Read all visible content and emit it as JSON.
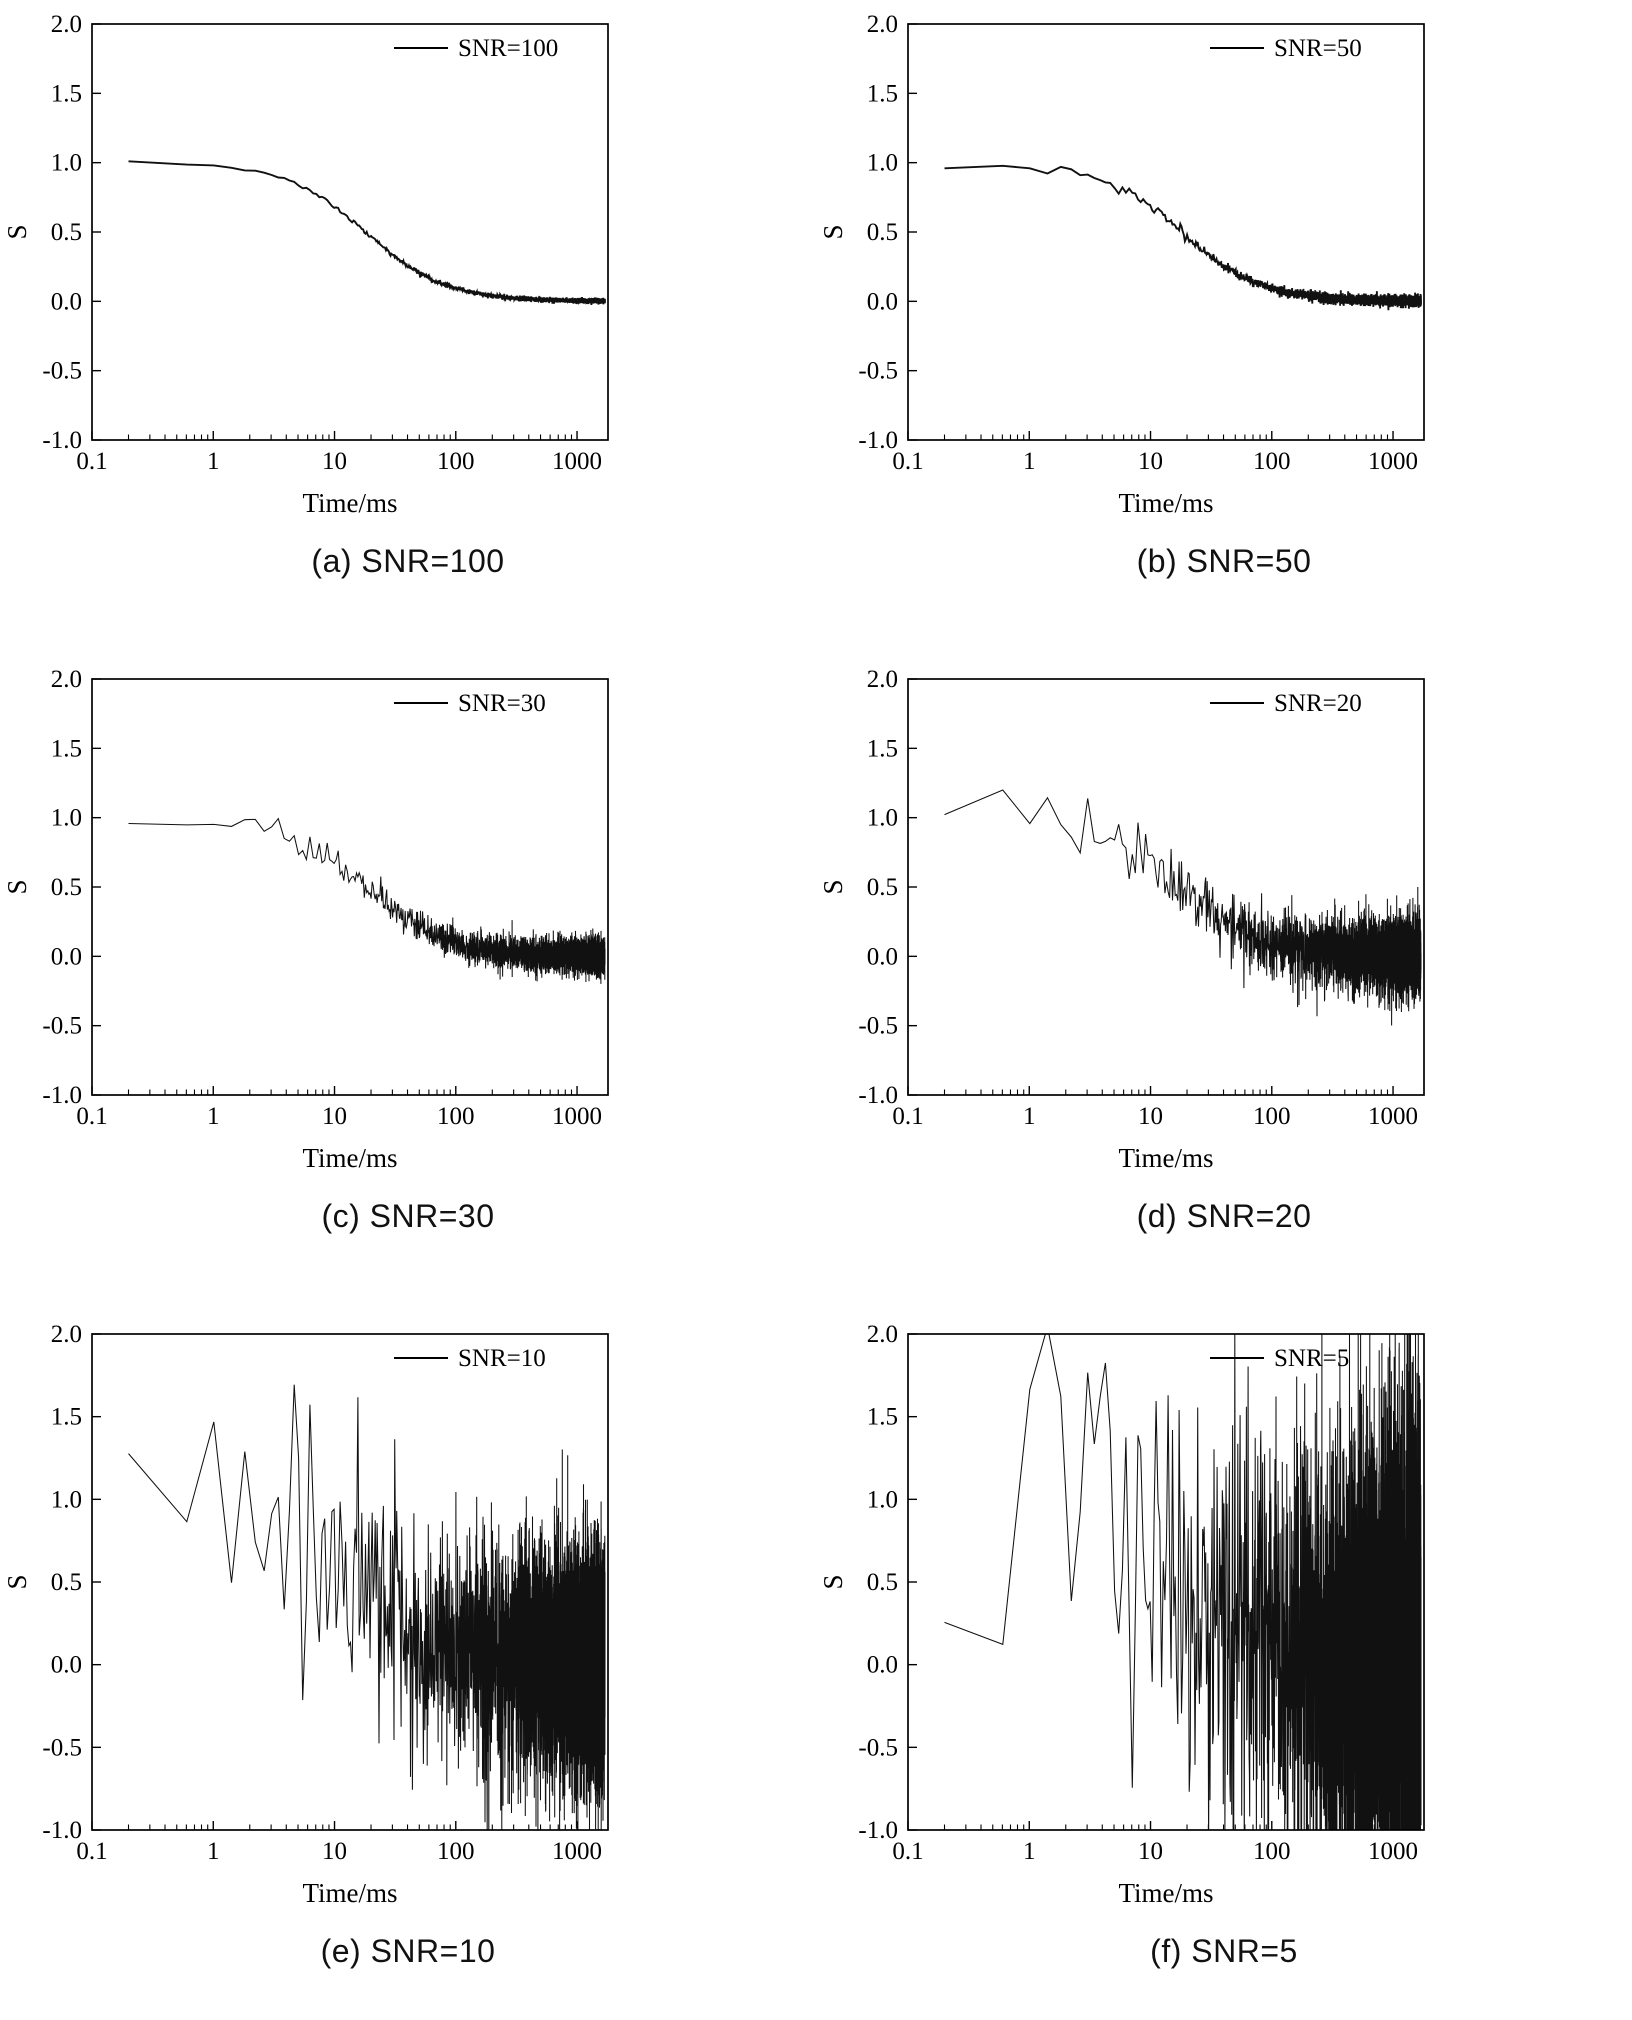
{
  "figure": {
    "description": "Six-panel figure of simulated NMR-type relaxation decay signals S versus time (log scale) at different signal-to-noise ratios",
    "xlabel": "Time/ms",
    "ylabel": "S"
  },
  "chart_data": [
    {
      "type": "line",
      "panel": "a",
      "caption": "(a) SNR=100",
      "legend": "SNR=100",
      "snr": 100,
      "xlabel": "Time/ms",
      "ylabel": "S",
      "xscale": "log",
      "xlim": [
        0.1,
        1800
      ],
      "ylim": [
        -1.0,
        2.0
      ],
      "xticks": [
        0.1,
        1,
        10,
        100,
        1000
      ],
      "xtick_labels": [
        "0.1",
        "1",
        "10",
        "100",
        "1000"
      ],
      "yticks": [
        -1.0,
        -0.5,
        0.0,
        0.5,
        1.0,
        1.5,
        2.0
      ],
      "ytick_labels": [
        "-1.0",
        "-0.5",
        "0.0",
        "0.5",
        "1.0",
        "1.5",
        "2.0"
      ],
      "curve_model": {
        "shape": "logistic-decay-in-log10-time",
        "plateau": 1.0,
        "floor": 0.0,
        "t50_ms": 18,
        "log10_width": 0.33
      },
      "noise_sigma": 0.008,
      "t_start_ms": 0.2,
      "t_end_ms": 1700,
      "line_color": "#111111",
      "grid": false,
      "legend_position": "top-right"
    },
    {
      "type": "line",
      "panel": "b",
      "caption": "(b) SNR=50",
      "legend": "SNR=50",
      "snr": 50,
      "xlabel": "Time/ms",
      "ylabel": "S",
      "xscale": "log",
      "xlim": [
        0.1,
        1800
      ],
      "ylim": [
        -1.0,
        2.0
      ],
      "xticks": [
        0.1,
        1,
        10,
        100,
        1000
      ],
      "xtick_labels": [
        "0.1",
        "1",
        "10",
        "100",
        "1000"
      ],
      "yticks": [
        -1.0,
        -0.5,
        0.0,
        0.5,
        1.0,
        1.5,
        2.0
      ],
      "ytick_labels": [
        "-1.0",
        "-0.5",
        "0.0",
        "0.5",
        "1.0",
        "1.5",
        "2.0"
      ],
      "curve_model": {
        "shape": "logistic-decay-in-log10-time",
        "plateau": 1.0,
        "floor": 0.0,
        "t50_ms": 18,
        "log10_width": 0.33
      },
      "noise_sigma": 0.018,
      "t_start_ms": 0.2,
      "t_end_ms": 1700,
      "line_color": "#111111",
      "grid": false,
      "legend_position": "top-right"
    },
    {
      "type": "line",
      "panel": "c",
      "caption": "(c) SNR=30",
      "legend": "SNR=30",
      "snr": 30,
      "xlabel": "Time/ms",
      "ylabel": "S",
      "xscale": "log",
      "xlim": [
        0.1,
        1800
      ],
      "ylim": [
        -1.0,
        2.0
      ],
      "xticks": [
        0.1,
        1,
        10,
        100,
        1000
      ],
      "xtick_labels": [
        "0.1",
        "1",
        "10",
        "100",
        "1000"
      ],
      "yticks": [
        -1.0,
        -0.5,
        0.0,
        0.5,
        1.0,
        1.5,
        2.0
      ],
      "ytick_labels": [
        "-1.0",
        "-0.5",
        "0.0",
        "0.5",
        "1.0",
        "1.5",
        "2.0"
      ],
      "curve_model": {
        "shape": "logistic-decay-in-log10-time",
        "plateau": 1.0,
        "floor": 0.0,
        "t50_ms": 18,
        "log10_width": 0.33
      },
      "noise_sigma": 0.06,
      "t_start_ms": 0.2,
      "t_end_ms": 1700,
      "line_color": "#111111",
      "grid": false,
      "legend_position": "top-right"
    },
    {
      "type": "line",
      "panel": "d",
      "caption": "(d) SNR=20",
      "legend": "SNR=20",
      "snr": 20,
      "xlabel": "Time/ms",
      "ylabel": "S",
      "xscale": "log",
      "xlim": [
        0.1,
        1800
      ],
      "ylim": [
        -1.0,
        2.0
      ],
      "xticks": [
        0.1,
        1,
        10,
        100,
        1000
      ],
      "xtick_labels": [
        "0.1",
        "1",
        "10",
        "100",
        "1000"
      ],
      "yticks": [
        -1.0,
        -0.5,
        0.0,
        0.5,
        1.0,
        1.5,
        2.0
      ],
      "ytick_labels": [
        "-1.0",
        "-0.5",
        "0.0",
        "0.5",
        "1.0",
        "1.5",
        "2.0"
      ],
      "curve_model": {
        "shape": "logistic-decay-in-log10-time",
        "plateau": 1.0,
        "floor": 0.0,
        "t50_ms": 18,
        "log10_width": 0.33
      },
      "noise_sigma": 0.13,
      "t_start_ms": 0.2,
      "t_end_ms": 1700,
      "line_color": "#111111",
      "grid": false,
      "legend_position": "top-right"
    },
    {
      "type": "line",
      "panel": "e",
      "caption": "(e) SNR=10",
      "legend": "SNR=10",
      "snr": 10,
      "xlabel": "Time/ms",
      "ylabel": "S",
      "xscale": "log",
      "xlim": [
        0.1,
        1800
      ],
      "ylim": [
        -1.0,
        2.0
      ],
      "xticks": [
        0.1,
        1,
        10,
        100,
        1000
      ],
      "xtick_labels": [
        "0.1",
        "1",
        "10",
        "100",
        "1000"
      ],
      "yticks": [
        -1.0,
        -0.5,
        0.0,
        0.5,
        1.0,
        1.5,
        2.0
      ],
      "ytick_labels": [
        "-1.0",
        "-0.5",
        "0.0",
        "0.5",
        "1.0",
        "1.5",
        "2.0"
      ],
      "curve_model": {
        "shape": "logistic-decay-in-log10-time",
        "plateau": 1.0,
        "floor": 0.0,
        "t50_ms": 18,
        "log10_width": 0.33
      },
      "noise_sigma": 0.36,
      "t_start_ms": 0.2,
      "t_end_ms": 1700,
      "line_color": "#111111",
      "grid": false,
      "legend_position": "top-right"
    },
    {
      "type": "line",
      "panel": "f",
      "caption": "(f) SNR=5",
      "legend": "SNR=5",
      "snr": 5,
      "xlabel": "Time/ms",
      "ylabel": "S",
      "xscale": "log",
      "xlim": [
        0.1,
        1800
      ],
      "ylim": [
        -1.0,
        2.0
      ],
      "xticks": [
        0.1,
        1,
        10,
        100,
        1000
      ],
      "xtick_labels": [
        "0.1",
        "1",
        "10",
        "100",
        "1000"
      ],
      "yticks": [
        -1.0,
        -0.5,
        0.0,
        0.5,
        1.0,
        1.5,
        2.0
      ],
      "ytick_labels": [
        "-1.0",
        "-0.5",
        "0.0",
        "0.5",
        "1.0",
        "1.5",
        "2.0"
      ],
      "curve_model": {
        "shape": "logistic-decay-in-log10-time",
        "plateau": 1.0,
        "floor": 0.0,
        "t50_ms": 18,
        "log10_width": 0.33
      },
      "noise_sigma": 0.72,
      "t_start_ms": 0.2,
      "t_end_ms": 1700,
      "line_color": "#111111",
      "grid": false,
      "legend_position": "top-right"
    }
  ]
}
